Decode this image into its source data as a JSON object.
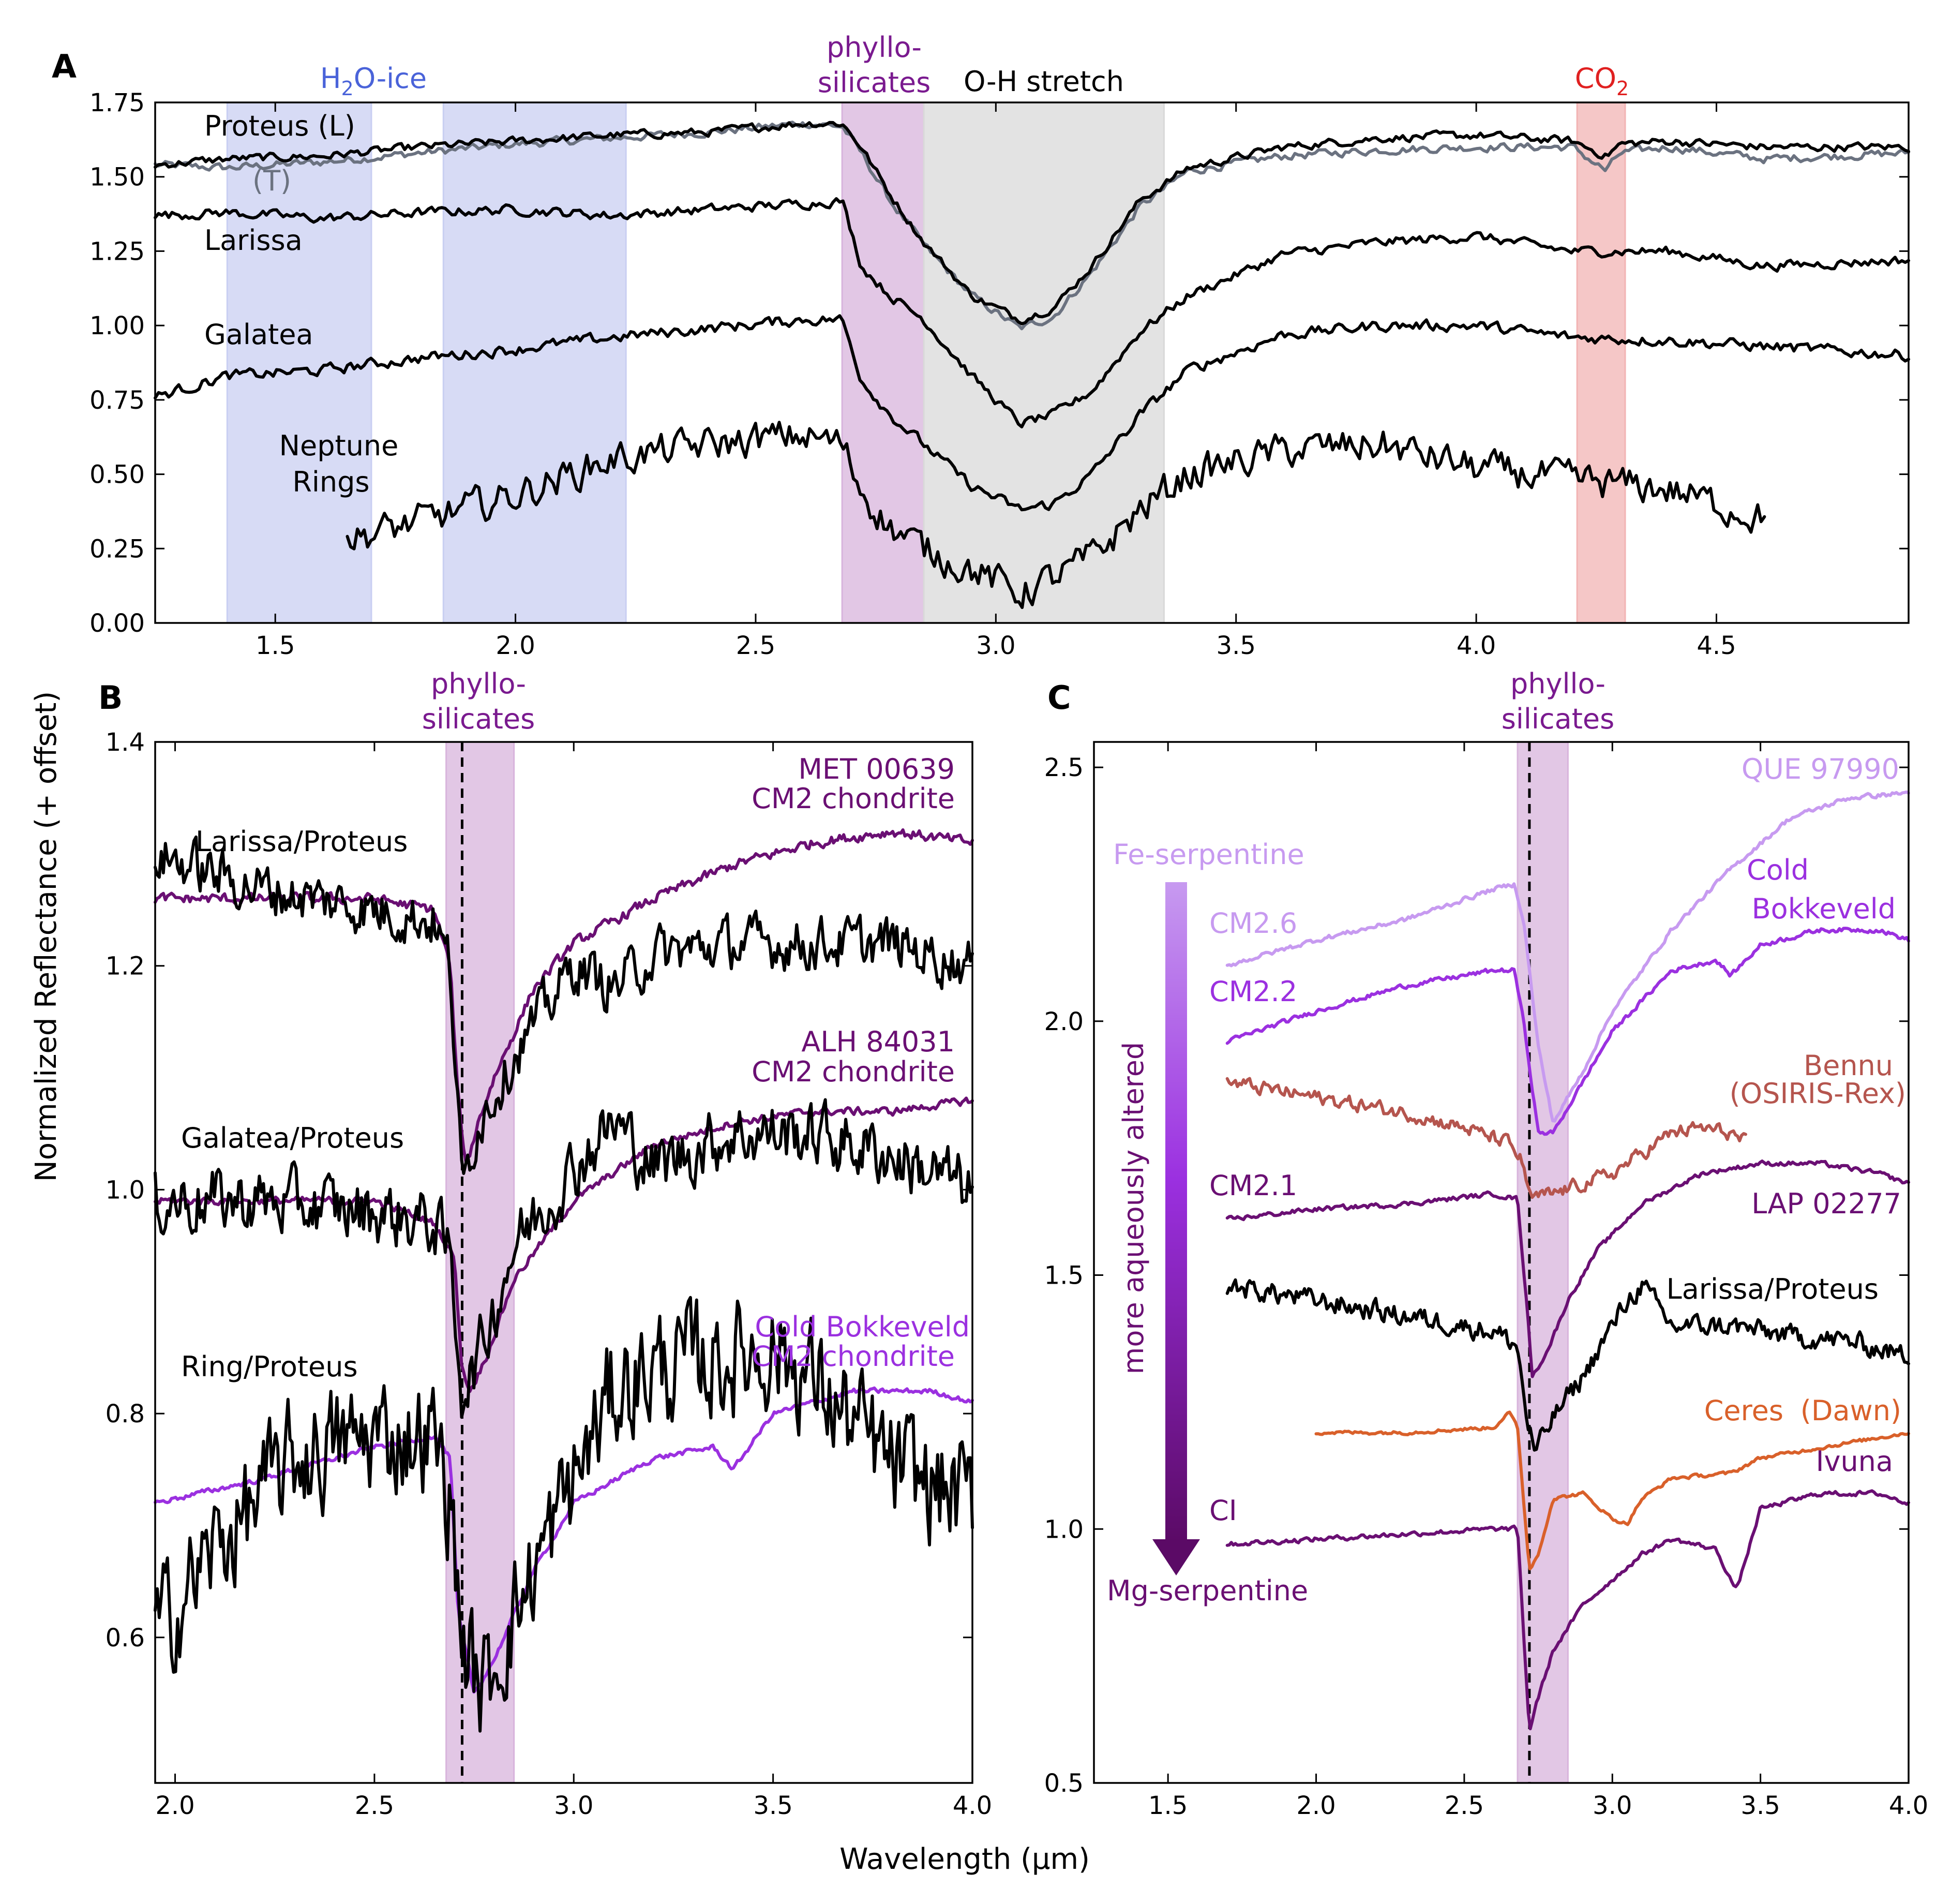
{
  "figure": {
    "ylabel": "Normalized Reflectance (+ offset)",
    "xlabel": "Wavelength (μm)"
  },
  "colors": {
    "black": "#000000",
    "gray": "#6b7280",
    "purple_dark": "#6a0f73",
    "purple_mid": "#9b30e0",
    "purple_light": "#c79af0",
    "bennu": "#b5554e",
    "ceres": "#d9602a",
    "ice_band": "#c9cff2",
    "phyllo_band": "#d8b4dc",
    "oh_band": "#d9d9d9",
    "co2_band": "#f2b4b4",
    "ice_text": "#4a63d9",
    "phyllo_text": "#7a1a8f",
    "co2_text": "#e02020"
  },
  "chart_data": [
    {
      "panel": "A",
      "type": "line",
      "xlim": [
        1.25,
        4.9
      ],
      "ylim": [
        0.0,
        1.75
      ],
      "xticks": [
        "1.5",
        "2.0",
        "2.5",
        "3.0",
        "3.5",
        "4.0",
        "4.5"
      ],
      "yticks": [
        "0.00",
        "0.25",
        "0.50",
        "0.75",
        "1.00",
        "1.25",
        "1.50",
        "1.75"
      ],
      "bands": [
        {
          "label": "H₂O-ice",
          "x": [
            1.4,
            1.7
          ],
          "color": "ice_band"
        },
        {
          "label": "",
          "x": [
            1.85,
            2.23
          ],
          "color": "ice_band"
        },
        {
          "label": "phyllo-silicates",
          "x": [
            2.68,
            2.85
          ],
          "color": "phyllo_band"
        },
        {
          "label": "O-H stretch",
          "x": [
            2.85,
            3.35
          ],
          "color": "oh_band"
        },
        {
          "label": "CO₂",
          "x": [
            4.21,
            4.31
          ],
          "color": "co2_band"
        }
      ],
      "band_labels": {
        "ice": "H₂O-ice",
        "phyllo_1": "phyllo-",
        "phyllo_2": "silicates",
        "oh": "O-H stretch",
        "co2": "CO₂"
      },
      "series": [
        {
          "name": "(T)",
          "color": "gray",
          "noise": 0.012,
          "x": [
            1.25,
            1.4,
            1.6,
            1.8,
            2.0,
            2.2,
            2.4,
            2.6,
            2.68,
            2.72,
            2.78,
            2.85,
            2.95,
            3.05,
            3.12,
            3.2,
            3.3,
            3.4,
            3.6,
            3.8,
            4.0,
            4.2,
            4.27,
            4.3,
            4.4,
            4.6,
            4.9
          ],
          "y": [
            1.54,
            1.53,
            1.55,
            1.58,
            1.61,
            1.63,
            1.65,
            1.68,
            1.67,
            1.58,
            1.42,
            1.27,
            1.1,
            0.99,
            1.03,
            1.18,
            1.4,
            1.52,
            1.57,
            1.59,
            1.6,
            1.6,
            1.52,
            1.58,
            1.6,
            1.56,
            1.58
          ]
        },
        {
          "name": "Proteus (L)",
          "color": "black",
          "noise": 0.012,
          "x": [
            1.25,
            1.4,
            1.6,
            1.8,
            2.0,
            2.2,
            2.4,
            2.6,
            2.68,
            2.72,
            2.78,
            2.85,
            2.95,
            3.05,
            3.12,
            3.2,
            3.3,
            3.4,
            3.6,
            3.8,
            4.0,
            4.2,
            4.27,
            4.3,
            4.4,
            4.6,
            4.9
          ],
          "y": [
            1.54,
            1.56,
            1.57,
            1.6,
            1.62,
            1.64,
            1.65,
            1.68,
            1.68,
            1.6,
            1.44,
            1.28,
            1.1,
            1.02,
            1.06,
            1.2,
            1.42,
            1.53,
            1.6,
            1.63,
            1.64,
            1.62,
            1.57,
            1.61,
            1.62,
            1.6,
            1.6
          ]
        },
        {
          "name": "Larissa",
          "color": "black",
          "noise": 0.014,
          "x": [
            1.25,
            1.4,
            1.6,
            1.8,
            2.0,
            2.2,
            2.4,
            2.6,
            2.68,
            2.72,
            2.78,
            2.85,
            2.95,
            3.05,
            3.12,
            3.2,
            3.3,
            3.4,
            3.6,
            3.8,
            4.0,
            4.2,
            4.4,
            4.6,
            4.9
          ],
          "y": [
            1.37,
            1.38,
            1.36,
            1.38,
            1.39,
            1.37,
            1.39,
            1.41,
            1.42,
            1.2,
            1.1,
            1.02,
            0.83,
            0.67,
            0.7,
            0.78,
            0.98,
            1.1,
            1.24,
            1.28,
            1.3,
            1.25,
            1.25,
            1.2,
            1.22
          ]
        },
        {
          "name": "Galatea",
          "color": "black",
          "noise": 0.016,
          "x": [
            1.25,
            1.4,
            1.6,
            1.8,
            2.0,
            2.2,
            2.4,
            2.6,
            2.68,
            2.72,
            2.78,
            2.85,
            2.95,
            3.05,
            3.12,
            3.2,
            3.3,
            3.4,
            3.6,
            3.8,
            4.0,
            4.2,
            4.4,
            4.6,
            4.9
          ],
          "y": [
            0.76,
            0.83,
            0.85,
            0.89,
            0.92,
            0.96,
            0.99,
            1.02,
            1.02,
            0.82,
            0.7,
            0.6,
            0.46,
            0.38,
            0.4,
            0.5,
            0.7,
            0.85,
            0.97,
            1.0,
            1.0,
            0.96,
            0.95,
            0.93,
            0.9
          ]
        },
        {
          "name": "Neptune Rings",
          "color": "black",
          "noise": 0.05,
          "x": [
            1.65,
            1.8,
            2.0,
            2.2,
            2.4,
            2.6,
            2.68,
            2.72,
            2.78,
            2.85,
            2.95,
            3.05,
            3.12,
            3.2,
            3.3,
            3.4,
            3.6,
            3.8,
            4.0,
            4.2,
            4.4,
            4.6
          ],
          "y": [
            0.28,
            0.34,
            0.43,
            0.55,
            0.6,
            0.63,
            0.6,
            0.45,
            0.32,
            0.25,
            0.18,
            0.1,
            0.15,
            0.22,
            0.38,
            0.5,
            0.58,
            0.6,
            0.52,
            0.48,
            0.45,
            0.35
          ]
        }
      ],
      "labels": {
        "proteus": "Proteus (L)",
        "t": "(T)",
        "larissa": "Larissa",
        "galatea": "Galatea",
        "rings_1": "Neptune",
        "rings_2": "Rings"
      }
    },
    {
      "panel": "B",
      "type": "line",
      "xlim": [
        1.95,
        4.0
      ],
      "ylim": [
        0.47,
        1.4
      ],
      "xticks": [
        "2.0",
        "2.5",
        "3.0",
        "3.5",
        "4.0"
      ],
      "yticks": [
        "0.6",
        "0.8",
        "1.0",
        "1.2",
        "1.4"
      ],
      "bands": [
        {
          "label": "phyllo-silicates",
          "x": [
            2.68,
            2.85
          ],
          "color": "phyllo_band"
        }
      ],
      "dashed_x": 2.72,
      "band_labels": {
        "phyllo_1": "phyllo-",
        "phyllo_2": "silicates"
      },
      "series": [
        {
          "name": "MET 00639 CM2 chondrite",
          "color": "purple_dark",
          "noise": 0.004,
          "x": [
            1.95,
            2.2,
            2.5,
            2.65,
            2.69,
            2.71,
            2.73,
            2.76,
            2.8,
            2.9,
            3.0,
            3.2,
            3.4,
            3.6,
            3.8,
            4.0
          ],
          "y": [
            1.26,
            1.26,
            1.26,
            1.25,
            1.2,
            1.08,
            1.02,
            1.06,
            1.1,
            1.18,
            1.22,
            1.26,
            1.29,
            1.31,
            1.32,
            1.31
          ]
        },
        {
          "name": "ALH 84031 CM2 chondrite",
          "color": "purple_dark",
          "noise": 0.003,
          "x": [
            1.95,
            2.2,
            2.5,
            2.65,
            2.7,
            2.72,
            2.74,
            2.78,
            2.85,
            3.0,
            3.2,
            3.4,
            3.6,
            3.8,
            4.0
          ],
          "y": [
            0.99,
            0.99,
            0.99,
            0.97,
            0.94,
            0.84,
            0.82,
            0.85,
            0.92,
            0.99,
            1.04,
            1.06,
            1.07,
            1.07,
            1.08
          ]
        },
        {
          "name": "Cold Bokkeveld CM2 chondrite",
          "color": "purple_mid",
          "noise": 0.002,
          "x": [
            1.95,
            2.2,
            2.5,
            2.65,
            2.69,
            2.71,
            2.75,
            2.8,
            2.9,
            3.0,
            3.2,
            3.35,
            3.4,
            3.5,
            3.7,
            3.9,
            4.0
          ],
          "y": [
            0.72,
            0.74,
            0.77,
            0.78,
            0.76,
            0.62,
            0.55,
            0.58,
            0.66,
            0.72,
            0.76,
            0.77,
            0.75,
            0.8,
            0.82,
            0.82,
            0.81
          ]
        },
        {
          "name": "Larissa/Proteus",
          "color": "black",
          "noise": 0.02,
          "x": [
            1.95,
            2.2,
            2.5,
            2.65,
            2.69,
            2.72,
            2.76,
            2.85,
            3.0,
            3.1,
            3.2,
            3.4,
            3.6,
            3.8,
            4.0
          ],
          "y": [
            1.3,
            1.27,
            1.25,
            1.24,
            1.2,
            1.0,
            1.06,
            1.12,
            1.2,
            1.18,
            1.21,
            1.22,
            1.22,
            1.22,
            1.2
          ]
        },
        {
          "name": "Galatea/Proteus",
          "color": "black",
          "noise": 0.025,
          "x": [
            1.95,
            2.2,
            2.5,
            2.65,
            2.69,
            2.72,
            2.76,
            2.85,
            3.0,
            3.1,
            3.2,
            3.4,
            3.6,
            3.8,
            4.0
          ],
          "y": [
            0.99,
            0.99,
            0.98,
            0.97,
            0.94,
            0.82,
            0.85,
            0.95,
            1.02,
            1.06,
            1.02,
            1.05,
            1.05,
            1.03,
            1.0
          ]
        },
        {
          "name": "Ring/Proteus",
          "color": "black",
          "noise": 0.045,
          "x": [
            1.95,
            2.1,
            2.3,
            2.5,
            2.65,
            2.69,
            2.72,
            2.77,
            2.85,
            3.0,
            3.1,
            3.2,
            3.4,
            3.5,
            3.6,
            3.8,
            4.0
          ],
          "y": [
            0.6,
            0.68,
            0.76,
            0.78,
            0.78,
            0.72,
            0.6,
            0.55,
            0.62,
            0.74,
            0.82,
            0.84,
            0.85,
            0.86,
            0.83,
            0.75,
            0.72
          ]
        }
      ],
      "labels": {
        "met_1": "MET 00639",
        "met_2": "CM2 chondrite",
        "alh_1": "ALH 84031",
        "alh_2": "CM2 chondrite",
        "cb_1": "Cold Bokkeveld",
        "cb_2": "CM2 chondrite",
        "larissa": "Larissa/Proteus",
        "galatea": "Galatea/Proteus",
        "ring": "Ring/Proteus"
      }
    },
    {
      "panel": "C",
      "type": "line",
      "xlim": [
        1.25,
        4.0
      ],
      "ylim": [
        0.5,
        2.55
      ],
      "xticks": [
        "1.5",
        "2.0",
        "2.5",
        "3.0",
        "3.5",
        "4.0"
      ],
      "yticks": [
        "0.5",
        "1.0",
        "1.5",
        "2.0",
        "2.5"
      ],
      "bands": [
        {
          "label": "phyllo-silicates",
          "x": [
            2.68,
            2.85
          ],
          "color": "phyllo_band"
        }
      ],
      "dashed_x": 2.72,
      "band_labels": {
        "phyllo_1": "phyllo-",
        "phyllo_2": "silicates"
      },
      "series": [
        {
          "name": "QUE 97990",
          "color": "purple_light",
          "noise": 0.004,
          "x": [
            1.7,
            2.0,
            2.3,
            2.6,
            2.67,
            2.7,
            2.75,
            2.8,
            2.9,
            3.0,
            3.2,
            3.4,
            3.6,
            3.8,
            4.0
          ],
          "y": [
            2.11,
            2.16,
            2.2,
            2.26,
            2.27,
            2.2,
            1.95,
            1.8,
            1.9,
            2.02,
            2.18,
            2.3,
            2.4,
            2.44,
            2.45
          ]
        },
        {
          "name": "Cold Bokkeveld",
          "color": "purple_mid",
          "noise": 0.004,
          "x": [
            1.7,
            2.0,
            2.3,
            2.6,
            2.67,
            2.7,
            2.75,
            2.8,
            2.9,
            3.0,
            3.2,
            3.35,
            3.4,
            3.5,
            3.7,
            3.9,
            4.0
          ],
          "y": [
            1.96,
            2.02,
            2.07,
            2.1,
            2.1,
            2.0,
            1.78,
            1.78,
            1.88,
            1.98,
            2.1,
            2.12,
            2.09,
            2.15,
            2.18,
            2.18,
            2.16
          ]
        },
        {
          "name": "Bennu",
          "color": "bennu",
          "noise": 0.012,
          "x": [
            1.7,
            1.9,
            2.1,
            2.3,
            2.5,
            2.65,
            2.7,
            2.72,
            2.8,
            2.9,
            3.0,
            3.1,
            3.2,
            3.3,
            3.4,
            3.45
          ],
          "y": [
            1.88,
            1.86,
            1.84,
            1.82,
            1.79,
            1.76,
            1.72,
            1.65,
            1.66,
            1.68,
            1.7,
            1.74,
            1.78,
            1.79,
            1.78,
            1.76
          ]
        },
        {
          "name": "LAP 02277",
          "color": "purple_dark",
          "noise": 0.004,
          "x": [
            1.7,
            2.0,
            2.3,
            2.6,
            2.68,
            2.71,
            2.73,
            2.78,
            2.85,
            2.95,
            3.1,
            3.3,
            3.5,
            3.7,
            3.9,
            4.0
          ],
          "y": [
            1.61,
            1.63,
            1.64,
            1.66,
            1.65,
            1.45,
            1.3,
            1.35,
            1.45,
            1.55,
            1.64,
            1.7,
            1.72,
            1.72,
            1.7,
            1.68
          ]
        },
        {
          "name": "Larissa/Proteus",
          "color": "black",
          "noise": 0.018,
          "x": [
            1.7,
            2.0,
            2.3,
            2.6,
            2.68,
            2.71,
            2.74,
            2.8,
            2.9,
            3.0,
            3.05,
            3.1,
            3.2,
            3.4,
            3.6,
            3.8,
            4.0
          ],
          "y": [
            1.48,
            1.45,
            1.42,
            1.39,
            1.36,
            1.22,
            1.15,
            1.22,
            1.3,
            1.4,
            1.45,
            1.48,
            1.4,
            1.4,
            1.38,
            1.37,
            1.34
          ]
        },
        {
          "name": "Ceres",
          "color": "ceres",
          "noise": 0.003,
          "x": [
            2.0,
            2.3,
            2.6,
            2.65,
            2.68,
            2.7,
            2.72,
            2.75,
            2.8,
            2.9,
            3.0,
            3.05,
            3.1,
            3.2,
            3.4,
            3.5,
            3.6,
            3.8,
            4.0
          ],
          "y": [
            1.19,
            1.19,
            1.2,
            1.23,
            1.2,
            1.06,
            0.92,
            0.95,
            1.06,
            1.07,
            1.02,
            1.01,
            1.06,
            1.1,
            1.11,
            1.14,
            1.15,
            1.17,
            1.19
          ]
        },
        {
          "name": "Ivuna",
          "color": "purple_dark",
          "noise": 0.004,
          "x": [
            1.7,
            2.0,
            2.3,
            2.6,
            2.68,
            2.7,
            2.72,
            2.74,
            2.8,
            2.9,
            3.0,
            3.1,
            3.2,
            3.35,
            3.4,
            3.42,
            3.5,
            3.7,
            3.9,
            4.0
          ],
          "y": [
            0.97,
            0.98,
            0.99,
            1.0,
            1.0,
            0.8,
            0.6,
            0.65,
            0.76,
            0.85,
            0.9,
            0.95,
            0.98,
            0.96,
            0.9,
            0.88,
            1.04,
            1.07,
            1.07,
            1.05
          ]
        }
      ],
      "labels": {
        "que": "QUE 97990",
        "cb_1": "Cold",
        "cb_2": "Bokkeveld",
        "bennu": "Bennu",
        "osiris": "(OSIRIS-Rex)",
        "lap": "LAP 02277",
        "larissa": "Larissa/Proteus",
        "ceres": "Ceres",
        "dawn": "(Dawn)",
        "ivuna": "Ivuna",
        "fe": "Fe-serpentine",
        "mg": "Mg-serpentine",
        "altered": "more aqueously altered",
        "cm26": "CM2.6",
        "cm22": "CM2.2",
        "cm21": "CM2.1",
        "ci": "CI"
      }
    }
  ]
}
